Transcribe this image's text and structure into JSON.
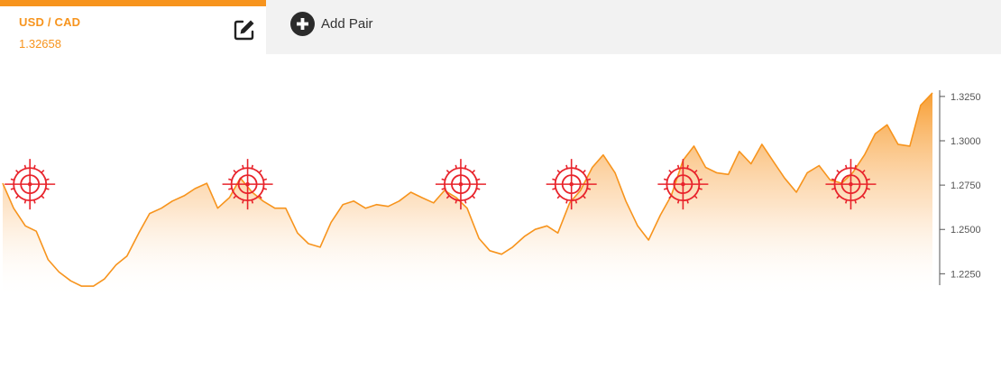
{
  "pair": {
    "name": "USD / CAD",
    "rate": "1.32658"
  },
  "toolbar": {
    "edit_icon": "edit-icon",
    "add_icon": "plus-circle-icon",
    "add_label": "Add Pair"
  },
  "colors": {
    "accent": "#f7941d",
    "marker": "#e8242c",
    "tab_bg": "#f2f2f2"
  },
  "chart_data": {
    "type": "area",
    "title": "",
    "xlabel": "",
    "ylabel": "",
    "ylim": [
      1.215,
      1.3285
    ],
    "yticks": [
      1.325,
      1.3,
      1.275,
      1.25,
      1.225
    ],
    "ytick_labels": [
      "1.3250",
      "1.3000",
      "1.2750",
      "1.2500",
      "1.2250"
    ],
    "x": [
      0,
      12,
      25,
      37,
      50,
      62,
      75,
      87,
      100,
      112,
      125,
      137,
      150,
      162,
      175,
      187,
      200,
      212,
      225,
      237,
      250,
      262,
      275,
      287,
      300,
      312,
      325,
      337,
      350,
      362,
      375,
      387,
      400,
      412,
      425,
      437,
      450,
      462,
      475,
      487,
      500,
      512,
      525,
      537,
      550,
      562,
      575,
      587,
      600,
      612,
      625,
      637,
      650,
      662,
      675,
      687,
      700,
      712,
      725,
      737,
      750,
      762,
      775,
      787,
      800,
      812,
      825,
      837,
      850,
      862,
      875,
      887,
      900,
      912,
      925,
      937,
      950,
      962,
      975,
      987,
      1000,
      1012,
      1025
    ],
    "values": [
      1.276,
      1.262,
      1.252,
      1.249,
      1.233,
      1.226,
      1.221,
      1.218,
      1.218,
      1.222,
      1.23,
      1.235,
      1.248,
      1.259,
      1.262,
      1.266,
      1.269,
      1.273,
      1.276,
      1.262,
      1.268,
      1.279,
      1.271,
      1.266,
      1.262,
      1.262,
      1.248,
      1.242,
      1.24,
      1.254,
      1.264,
      1.266,
      1.262,
      1.264,
      1.263,
      1.266,
      1.271,
      1.268,
      1.265,
      1.272,
      1.268,
      1.262,
      1.245,
      1.238,
      1.236,
      1.24,
      1.246,
      1.25,
      1.252,
      1.248,
      1.265,
      1.272,
      1.285,
      1.292,
      1.282,
      1.266,
      1.252,
      1.244,
      1.258,
      1.269,
      1.289,
      1.297,
      1.285,
      1.282,
      1.281,
      1.294,
      1.287,
      1.298,
      1.288,
      1.279,
      1.271,
      1.282,
      1.286,
      1.278,
      1.276,
      1.282,
      1.292,
      1.304,
      1.309,
      1.298,
      1.297,
      1.32,
      1.327
    ],
    "markers_x": [
      30,
      270,
      505,
      627,
      750,
      935
    ],
    "marker_value": 1.2755,
    "grid": false,
    "legend": "none"
  }
}
